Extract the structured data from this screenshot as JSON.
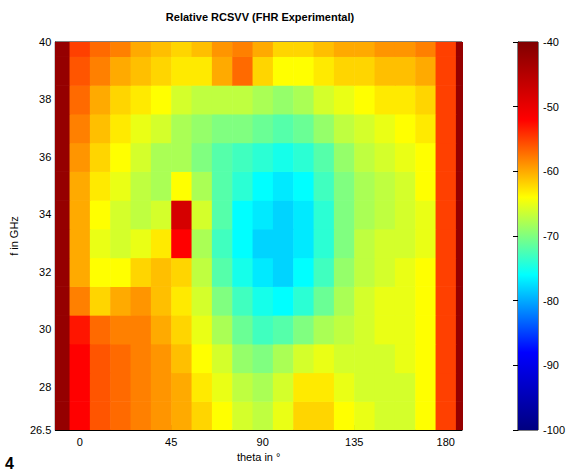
{
  "chart_data": {
    "type": "heatmap",
    "title": "Relative RCSVV (FHR Experimental)",
    "x_label": "theta in °",
    "y_label": "f in GHz",
    "annotations": [
      "4"
    ],
    "x": [
      -10,
      0,
      10,
      20,
      30,
      40,
      50,
      60,
      70,
      80,
      90,
      100,
      110,
      120,
      130,
      140,
      150,
      160,
      170,
      180,
      190
    ],
    "y": [
      27,
      28,
      29,
      30,
      31,
      32,
      33,
      34,
      35,
      36,
      37,
      38,
      39,
      40
    ],
    "values": [
      [
        -42,
        -52,
        -56,
        -57,
        -58,
        -59,
        -60,
        -62,
        -64,
        -66,
        -67,
        -65,
        -62,
        -62,
        -64,
        -65,
        -66,
        -66,
        -64,
        -55,
        -42
      ],
      [
        -42,
        -52,
        -56,
        -57,
        -58,
        -59,
        -60,
        -63,
        -65,
        -67,
        -68,
        -66,
        -63,
        -63,
        -65,
        -66,
        -66,
        -66,
        -64,
        -55,
        -42
      ],
      [
        -42,
        -52,
        -56,
        -57,
        -58,
        -59,
        -61,
        -64,
        -66,
        -69,
        -70,
        -68,
        -66,
        -65,
        -66,
        -66,
        -66,
        -65,
        -64,
        -55,
        -42
      ],
      [
        -42,
        -53,
        -57,
        -58,
        -58,
        -60,
        -62,
        -65,
        -68,
        -71,
        -73,
        -72,
        -70,
        -68,
        -67,
        -66,
        -65,
        -65,
        -64,
        -55,
        -42
      ],
      [
        -42,
        -58,
        -62,
        -60,
        -59,
        -61,
        -63,
        -66,
        -70,
        -73,
        -75,
        -76,
        -74,
        -71,
        -68,
        -66,
        -65,
        -65,
        -64,
        -55,
        -42
      ],
      [
        -42,
        -60,
        -64,
        -64,
        -62,
        -61,
        -62,
        -67,
        -72,
        -75,
        -77,
        -78,
        -76,
        -73,
        -69,
        -67,
        -66,
        -65,
        -64,
        -55,
        -42
      ],
      [
        -42,
        -60,
        -65,
        -66,
        -65,
        -63,
        -52,
        -68,
        -73,
        -76,
        -78,
        -78,
        -77,
        -74,
        -70,
        -67,
        -66,
        -66,
        -65,
        -55,
        -42
      ],
      [
        -42,
        -60,
        -64,
        -66,
        -67,
        -66,
        -48,
        -66,
        -72,
        -76,
        -77,
        -78,
        -77,
        -74,
        -70,
        -68,
        -67,
        -66,
        -65,
        -55,
        -42
      ],
      [
        -42,
        -60,
        -63,
        -65,
        -67,
        -68,
        -64,
        -68,
        -72,
        -74,
        -76,
        -77,
        -76,
        -73,
        -70,
        -68,
        -67,
        -66,
        -64,
        -55,
        -42
      ],
      [
        -42,
        -59,
        -62,
        -64,
        -66,
        -68,
        -68,
        -70,
        -72,
        -73,
        -74,
        -75,
        -74,
        -72,
        -69,
        -67,
        -66,
        -65,
        -64,
        -55,
        -42
      ],
      [
        -42,
        -58,
        -61,
        -63,
        -65,
        -66,
        -68,
        -69,
        -70,
        -70,
        -71,
        -72,
        -71,
        -69,
        -67,
        -66,
        -65,
        -64,
        -63,
        -55,
        -42
      ],
      [
        -42,
        -57,
        -60,
        -62,
        -63,
        -64,
        -66,
        -67,
        -67,
        -67,
        -68,
        -69,
        -68,
        -66,
        -65,
        -64,
        -63,
        -63,
        -62,
        -55,
        -42
      ],
      [
        -42,
        -56,
        -58,
        -60,
        -61,
        -62,
        -63,
        -63,
        -60,
        -57,
        -62,
        -64,
        -64,
        -63,
        -62,
        -62,
        -61,
        -61,
        -60,
        -55,
        -42
      ],
      [
        -42,
        -55,
        -57,
        -58,
        -60,
        -61,
        -62,
        -61,
        -59,
        -58,
        -60,
        -62,
        -62,
        -61,
        -60,
        -60,
        -59,
        -59,
        -58,
        -55,
        -42
      ]
    ],
    "xlim": [
      -12,
      188
    ],
    "xticks": [
      0,
      45,
      90,
      135,
      180
    ],
    "ylim": [
      26.5,
      40
    ],
    "yticks": [
      26.5,
      28,
      30,
      32,
      34,
      36,
      38,
      40
    ],
    "color_range": [
      -100,
      -40
    ],
    "color_ticks": [
      -100,
      -90,
      -80,
      -70,
      -60,
      -50,
      -40
    ],
    "grid": false
  }
}
